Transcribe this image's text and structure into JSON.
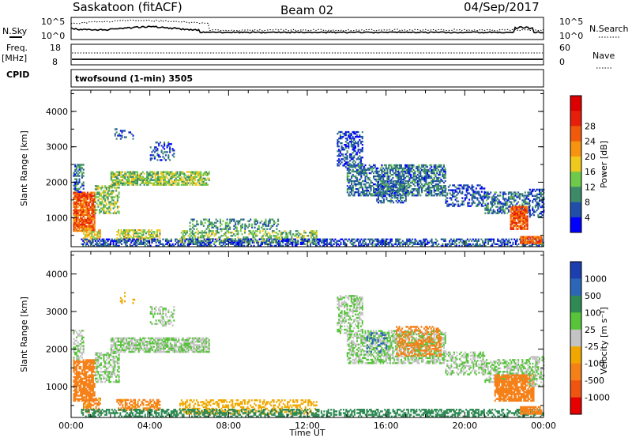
{
  "header": {
    "station": "Saskatoon (fitACF)",
    "beam": "Beam 02",
    "date": "04/Sep/2017"
  },
  "top_panels": {
    "nsky_label": "N.Sky",
    "nsky_ticks": [
      "10^5",
      "10^0"
    ],
    "nsearch_label": "N.Search",
    "nsearch_ticks": [
      "10^5",
      "10^0"
    ],
    "freq_label": "Freq.",
    "freq_unit": "[MHz]",
    "freq_ticks": [
      "18",
      "8"
    ],
    "nave_label": "Nave",
    "nave_ticks": [
      "60",
      "0"
    ],
    "cpid_label": "CPID",
    "cpid_value": "twofsound (1-min) 3505"
  },
  "colors": {
    "power_scale": [
      "#0000ff",
      "#1f4fa8",
      "#3d8a6a",
      "#6fc94a",
      "#f0c81e",
      "#f7940f",
      "#f05a0a",
      "#e61e0a",
      "#dd0000"
    ],
    "velocity_scale": [
      "#1c3fb0",
      "#2c66b7",
      "#2f8a55",
      "#57c43a",
      "#c4c4c4",
      "#f0a800",
      "#f58018",
      "#ef5510",
      "#e60000"
    ]
  },
  "chart_data": [
    {
      "type": "heatmap",
      "name": "power",
      "ylabel": "Slant Range [km]",
      "xlabel": "",
      "ylim": [
        180,
        4600
      ],
      "xlim": [
        0,
        24
      ],
      "y_ticks": [
        "1000",
        "2000",
        "3000",
        "4000"
      ],
      "colorbar_label": "Power [dB]",
      "colorbar_ticks": [
        "4",
        "8",
        "12",
        "16",
        "20",
        "24",
        "28"
      ],
      "scatter_regions": [
        {
          "t": [
            0.1,
            1.2
          ],
          "r": [
            600,
            1700
          ],
          "v": 26,
          "d": 0.85
        },
        {
          "t": [
            0.1,
            0.6
          ],
          "r": [
            1700,
            2500
          ],
          "v": 8,
          "d": 0.5
        },
        {
          "t": [
            1.2,
            2.4
          ],
          "r": [
            1100,
            1900
          ],
          "v": 14,
          "d": 0.55
        },
        {
          "t": [
            2.0,
            7.0
          ],
          "r": [
            1900,
            2300
          ],
          "v": 14,
          "d": 0.75
        },
        {
          "t": [
            0.6,
            1.5
          ],
          "r": [
            300,
            700
          ],
          "v": 18,
          "d": 0.6
        },
        {
          "t": [
            2.3,
            4.5
          ],
          "r": [
            350,
            650
          ],
          "v": 16,
          "d": 0.6
        },
        {
          "t": [
            2.2,
            3.2
          ],
          "r": [
            3200,
            3500
          ],
          "v": 6,
          "d": 0.2
        },
        {
          "t": [
            4.0,
            5.2
          ],
          "r": [
            2600,
            3100
          ],
          "v": 6,
          "d": 0.3
        },
        {
          "t": [
            6.0,
            10.5
          ],
          "r": [
            650,
            950
          ],
          "v": 10,
          "d": 0.35
        },
        {
          "t": [
            5.5,
            12.5
          ],
          "r": [
            280,
            600
          ],
          "v": 14,
          "d": 0.45
        },
        {
          "t": [
            0.5,
            24
          ],
          "r": [
            180,
            380
          ],
          "v": 6,
          "d": 0.55
        },
        {
          "t": [
            13.5,
            14.8
          ],
          "r": [
            2400,
            3400
          ],
          "v": 5,
          "d": 0.45
        },
        {
          "t": [
            14.0,
            19.0
          ],
          "r": [
            1600,
            2500
          ],
          "v": 8,
          "d": 0.6
        },
        {
          "t": [
            15.5,
            17.0
          ],
          "r": [
            1400,
            2000
          ],
          "v": 8,
          "d": 0.5
        },
        {
          "t": [
            19.0,
            21.0
          ],
          "r": [
            1300,
            1900
          ],
          "v": 6,
          "d": 0.45
        },
        {
          "t": [
            21.0,
            23.3
          ],
          "r": [
            1100,
            1700
          ],
          "v": 8,
          "d": 0.55
        },
        {
          "t": [
            22.3,
            23.2
          ],
          "r": [
            650,
            1300
          ],
          "v": 26,
          "d": 0.85
        },
        {
          "t": [
            22.8,
            23.9
          ],
          "r": [
            250,
            450
          ],
          "v": 26,
          "d": 0.9
        },
        {
          "t": [
            23.2,
            24.0
          ],
          "r": [
            1000,
            1800
          ],
          "v": 6,
          "d": 0.45
        }
      ]
    },
    {
      "type": "heatmap",
      "name": "velocity",
      "ylabel": "Slant Range [km]",
      "xlabel": "Time UT",
      "ylim": [
        180,
        4600
      ],
      "xlim": [
        0,
        24
      ],
      "y_ticks": [
        "1000",
        "2000",
        "3000",
        "4000"
      ],
      "x_ticks": [
        "00:00",
        "04:00",
        "08:00",
        "12:00",
        "16:00",
        "20:00",
        "00:00"
      ],
      "colorbar_label": "Velocity [m s⁻¹]",
      "colorbar_ticks": [
        "1000",
        "500",
        "100",
        "25",
        "-25",
        "-100",
        "-500",
        "-1000"
      ],
      "scatter_regions": [
        {
          "t": [
            0.1,
            1.2
          ],
          "r": [
            600,
            1700
          ],
          "v": -200,
          "d": 0.8
        },
        {
          "t": [
            0.1,
            0.6
          ],
          "r": [
            1700,
            2500
          ],
          "v": 0,
          "d": 0.5
        },
        {
          "t": [
            1.2,
            2.4
          ],
          "r": [
            1100,
            1900
          ],
          "v": 0,
          "d": 0.55
        },
        {
          "t": [
            2.0,
            7.0
          ],
          "r": [
            1900,
            2300
          ],
          "v": 0,
          "d": 0.75
        },
        {
          "t": [
            0.6,
            1.5
          ],
          "r": [
            300,
            700
          ],
          "v": -150,
          "d": 0.55
        },
        {
          "t": [
            2.3,
            4.5
          ],
          "r": [
            350,
            650
          ],
          "v": -150,
          "d": 0.55
        },
        {
          "t": [
            2.2,
            3.2
          ],
          "r": [
            3200,
            3500
          ],
          "v": -60,
          "d": 0.15
        },
        {
          "t": [
            4.0,
            5.2
          ],
          "r": [
            2600,
            3100
          ],
          "v": 0,
          "d": 0.3
        },
        {
          "t": [
            5.5,
            12.5
          ],
          "r": [
            250,
            650
          ],
          "v": -60,
          "d": 0.45
        },
        {
          "t": [
            0.5,
            24
          ],
          "r": [
            180,
            380
          ],
          "v": 60,
          "d": 0.5
        },
        {
          "t": [
            13.5,
            14.8
          ],
          "r": [
            2400,
            3400
          ],
          "v": 0,
          "d": 0.45
        },
        {
          "t": [
            14.0,
            19.0
          ],
          "r": [
            1600,
            2500
          ],
          "v": 0,
          "d": 0.6
        },
        {
          "t": [
            16.5,
            18.8
          ],
          "r": [
            1800,
            2600
          ],
          "v": -300,
          "d": 0.4
        },
        {
          "t": [
            15.0,
            16.0
          ],
          "r": [
            1900,
            2400
          ],
          "v": 150,
          "d": 0.25
        },
        {
          "t": [
            19.0,
            21.0
          ],
          "r": [
            1300,
            1900
          ],
          "v": 0,
          "d": 0.45
        },
        {
          "t": [
            21.0,
            23.3
          ],
          "r": [
            1100,
            1700
          ],
          "v": 0,
          "d": 0.5
        },
        {
          "t": [
            21.5,
            23.5
          ],
          "r": [
            600,
            1300
          ],
          "v": -300,
          "d": 0.8
        },
        {
          "t": [
            22.8,
            23.9
          ],
          "r": [
            250,
            450
          ],
          "v": -250,
          "d": 0.85
        },
        {
          "t": [
            23.2,
            24.0
          ],
          "r": [
            1000,
            1800
          ],
          "v": 0,
          "d": 0.45
        }
      ]
    }
  ]
}
